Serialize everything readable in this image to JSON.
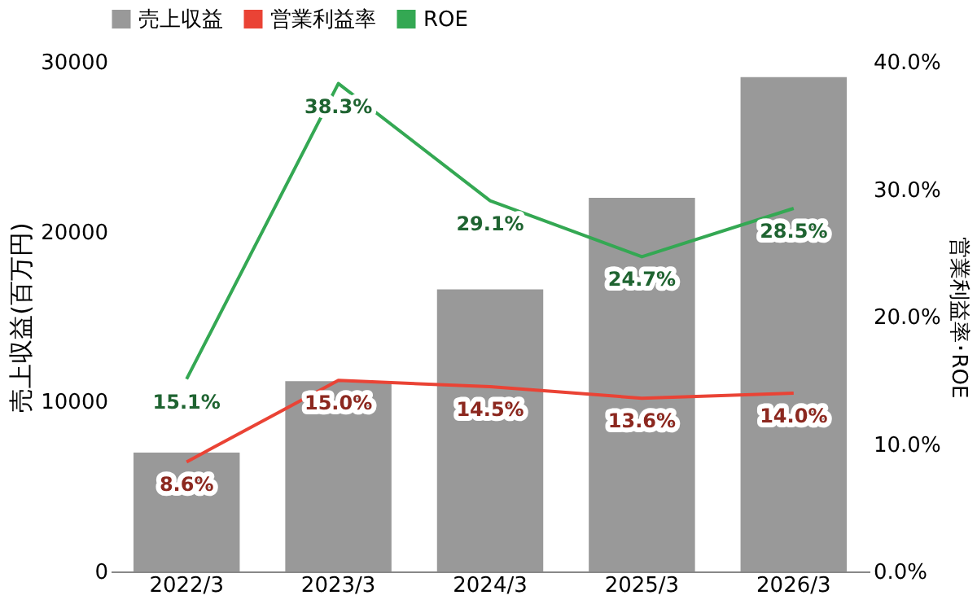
{
  "chart_data": {
    "type": "bar",
    "categories": [
      "2022/3",
      "2023/3",
      "2024/3",
      "2025/3",
      "2026/3"
    ],
    "ylabel": "売上収益(百万円)",
    "y2label": "営業利益率･ROE",
    "ylim": [
      0,
      30000
    ],
    "yticks": [
      0,
      10000,
      20000,
      30000
    ],
    "y2lim": [
      0,
      40
    ],
    "y2ticks": [
      {
        "value": 0,
        "label": "0.0%"
      },
      {
        "value": 10,
        "label": "10.0%"
      },
      {
        "value": 20,
        "label": "20.0%"
      },
      {
        "value": 30,
        "label": "30.0%"
      },
      {
        "value": 40,
        "label": "40.0%"
      }
    ],
    "legend": "top",
    "grid": false,
    "series": [
      {
        "name": "売上収益",
        "color": "#999999",
        "values": [
          7000,
          11200,
          16600,
          22000,
          29100
        ]
      },
      {
        "name": "営業利益率",
        "type": "line",
        "axis": "y2",
        "color": "#ea4335",
        "values": [
          8.6,
          15.0,
          14.5,
          13.6,
          14.0
        ],
        "value_labels": [
          "8.6%",
          "15.0%",
          "14.5%",
          "13.6%",
          "14.0%"
        ]
      },
      {
        "name": "ROE",
        "type": "line",
        "axis": "y2",
        "color": "#34a853",
        "values": [
          15.1,
          38.3,
          29.1,
          24.7,
          28.5
        ],
        "value_labels": [
          "15.1%",
          "38.3%",
          "29.1%",
          "24.7%",
          "28.5%"
        ]
      }
    ]
  }
}
